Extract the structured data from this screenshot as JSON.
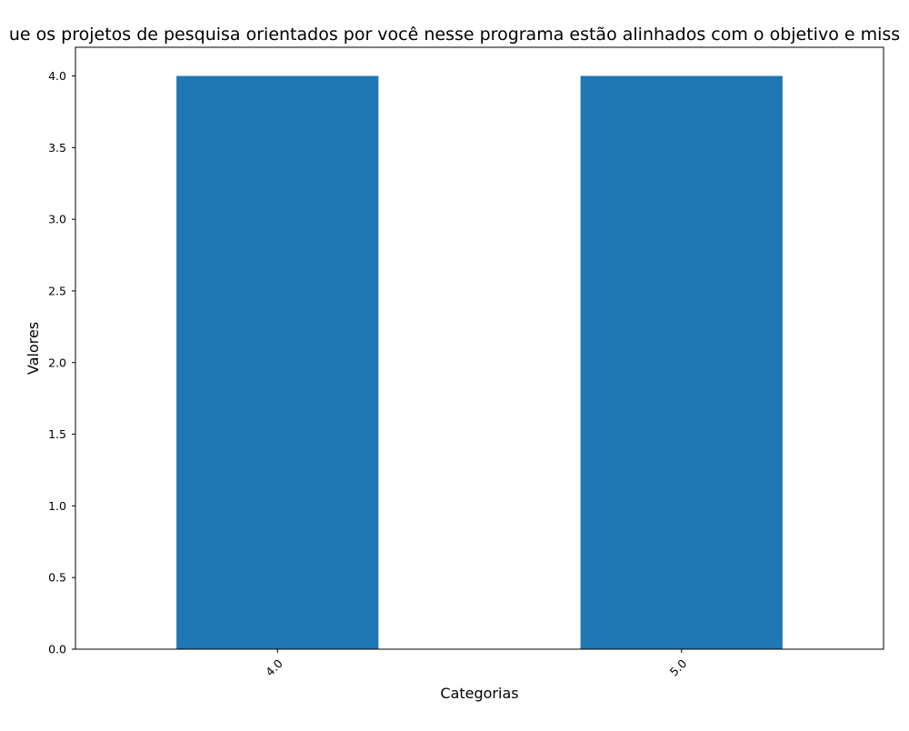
{
  "chart_data": {
    "type": "bar",
    "title": "...ue os projetos de pesquisa orientados por você nesse programa estão alinhados com o objetivo e miss...",
    "title_visible": "ue os projetos de pesquisa orientados por você nesse programa estão alinhados com o objetivo e miss",
    "xlabel": "Categorias",
    "ylabel": "Valores",
    "categories": [
      "4.0",
      "5.0"
    ],
    "values": [
      4,
      4
    ],
    "ylim": [
      0,
      4.2
    ],
    "yticks": [
      0.0,
      0.5,
      1.0,
      1.5,
      2.0,
      2.5,
      3.0,
      3.5,
      4.0
    ],
    "ytick_labels": [
      "0.0",
      "0.5",
      "1.0",
      "1.5",
      "2.0",
      "2.5",
      "3.0",
      "3.5",
      "4.0"
    ],
    "grid": false,
    "legend": "none",
    "bar_color": "#1f77b4"
  }
}
